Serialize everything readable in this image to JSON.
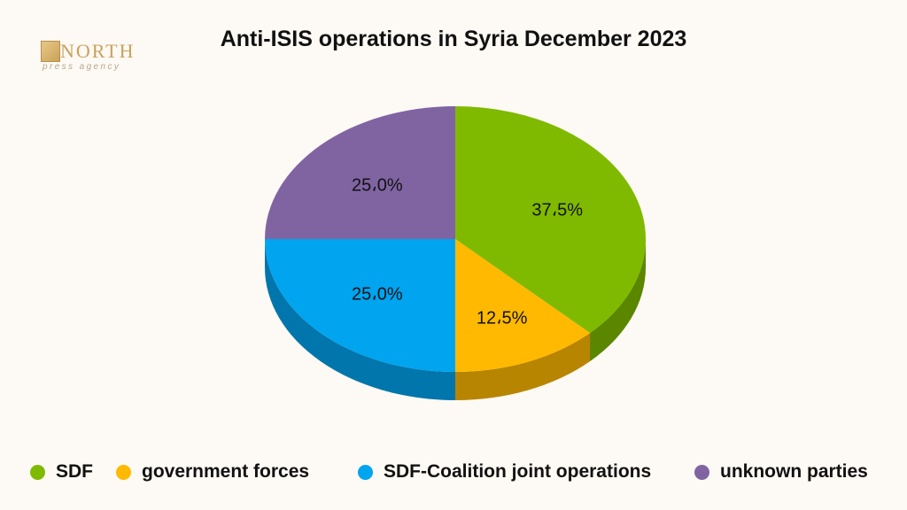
{
  "logo": {
    "wordmark": "NORTH",
    "subtitle": "press agency"
  },
  "chart_data": {
    "type": "pie",
    "title": "Anti-ISIS operations in Syria December 2023",
    "series": [
      {
        "name": "SDF",
        "value": 37.5,
        "label": "37،5%",
        "color": "#7fba00"
      },
      {
        "name": "government forces",
        "value": 12.5,
        "label": "12،5%",
        "color": "#ffb900"
      },
      {
        "name": "SDF-Coalition joint operations",
        "value": 25.0,
        "label": "25،0%",
        "color": "#00a4ef"
      },
      {
        "name": "unknown parties",
        "value": 25.0,
        "label": "25،0%",
        "color": "#8064a2"
      }
    ],
    "legend_position": "bottom",
    "style": "3d"
  }
}
